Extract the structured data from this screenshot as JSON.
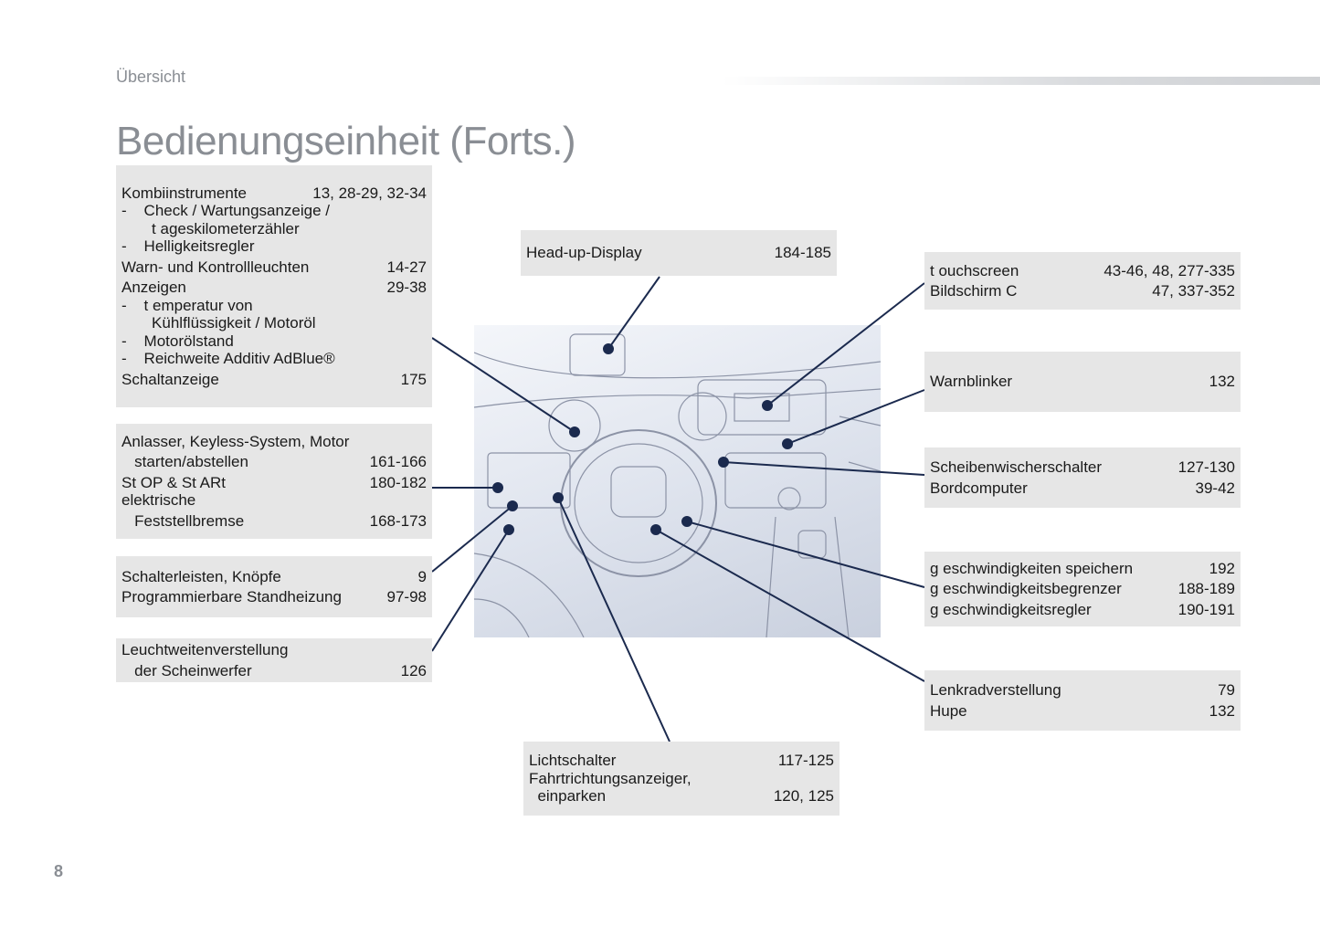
{
  "header": {
    "section": "Übersicht",
    "title": "Bedienungseinheit (Forts.)"
  },
  "page_number": "8",
  "colors": {
    "leader": "#1b2a4e",
    "box": "#e6e6e6",
    "heading": "#8a8e94"
  },
  "boxes": {
    "instruments": [
      {
        "label": "Kombiinstrumente",
        "pages": "13, 28-29, 32-34"
      },
      {
        "label": "-    Check / Wartungsanzeige /",
        "pages": ""
      },
      {
        "label": "       t ageskilometerzähler",
        "pages": ""
      },
      {
        "label": "-    Helligkeitsregler",
        "pages": ""
      },
      {
        "label": "Warn- und Kontrollleuchten",
        "pages": "14-27"
      },
      {
        "label": "Anzeigen",
        "pages": "29-38"
      },
      {
        "label": "-    t emperatur von",
        "pages": ""
      },
      {
        "label": "       Kühlflüssigkeit / Motoröl",
        "pages": ""
      },
      {
        "label": "-    Motorölstand",
        "pages": ""
      },
      {
        "label": "-    Reichweite Additiv AdBlue®",
        "pages": ""
      },
      {
        "label": "Schaltanzeige",
        "pages": "175"
      }
    ],
    "starter": [
      {
        "label": "Anlasser, Keyless-System, Motor",
        "pages": ""
      },
      {
        "label": "   starten/abstellen",
        "pages": "161-166"
      },
      {
        "label": "St OP & St ARt",
        "pages": "180-182"
      },
      {
        "label": "elektrische",
        "pages": ""
      },
      {
        "label": "   Feststellbremse",
        "pages": "168-173"
      }
    ],
    "switches": [
      {
        "label": "Schalterleisten, Knöpfe",
        "pages": "9"
      },
      {
        "label": "Programmierbare Standheizung",
        "pages": "97-98"
      }
    ],
    "headlamp": [
      {
        "label": "Leuchtweitenverstellung",
        "pages": ""
      },
      {
        "label": "   der Scheinwerfer",
        "pages": "126"
      }
    ],
    "hud": [
      {
        "label": "Head-up-Display",
        "pages": "184-185"
      }
    ],
    "lights": [
      {
        "label": "Lichtschalter",
        "pages": "117-125"
      },
      {
        "label": "Fahrtrichtungsanzeiger,",
        "pages": ""
      },
      {
        "label": "  einparken",
        "pages": "120, 125"
      }
    ],
    "touchscreen": [
      {
        "label": "t ouchscreen",
        "pages": "43-46, 48, 277-335"
      },
      {
        "label": "Bildschirm C",
        "pages": "47, 337-352"
      }
    ],
    "hazard": [
      {
        "label": "Warnblinker",
        "pages": "132"
      }
    ],
    "wiper": [
      {
        "label": "Scheibenwischerschalter",
        "pages": "127-130"
      },
      {
        "label": "Bordcomputer",
        "pages": "39-42"
      }
    ],
    "speed": [
      {
        "label": "g eschwindigkeiten speichern",
        "pages": "192"
      },
      {
        "label": "g eschwindigkeitsbegrenzer",
        "pages": "188-189"
      },
      {
        "label": "g eschwindigkeitsregler",
        "pages": "190-191"
      }
    ],
    "steering": [
      {
        "label": "Lenkradverstellung",
        "pages": "79"
      },
      {
        "label": "Hupe",
        "pages": "132"
      }
    ]
  }
}
